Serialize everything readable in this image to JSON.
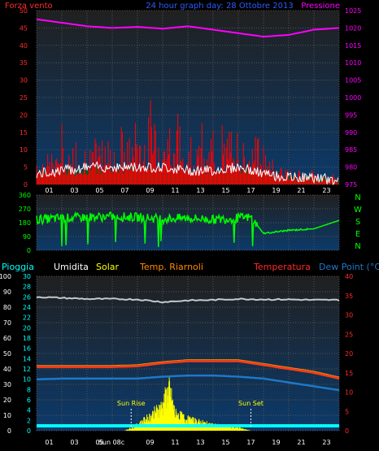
{
  "header": {
    "left_label": "Forza vento",
    "title": "24 hour graph day: 28 Ottobre 2013",
    "right_label": "Pressione"
  },
  "colors": {
    "bg_grad_top": "#202020",
    "bg_grad_bottom": "#0c3a6a",
    "grid": "#555555",
    "wind_gust": "#ff0000",
    "wind_avg": "#ffffff",
    "wind_fill": "#006400",
    "pressure": "#ff00ff",
    "direction": "#00ff00",
    "humidity": "#c8c8c8",
    "temperature": "#ff3b1a",
    "dewpoint": "#1e78c8",
    "solar": "#ffff00",
    "rain": "#00ffff",
    "green_axis": "#00ff00",
    "red_axis": "#ff2a2a",
    "cyan_axis": "#00ffff",
    "magenta_axis": "#ff00ff",
    "white_axis": "#ffffff"
  },
  "x_axis": {
    "ticks": [
      "01",
      "03",
      "05",
      "07",
      "09",
      "11",
      "13",
      "15",
      "17",
      "19",
      "21",
      "23"
    ]
  },
  "wind_panel": {
    "y_left": {
      "min": 0,
      "max": 50,
      "ticks": [
        0,
        5,
        10,
        15,
        20,
        25,
        30,
        35,
        40,
        45,
        50
      ]
    },
    "y_right": {
      "min": 975,
      "max": 1025,
      "ticks": [
        975,
        980,
        985,
        990,
        995,
        1000,
        1005,
        1010,
        1015,
        1020,
        1025
      ]
    }
  },
  "dir_panel": {
    "y_left": {
      "ticks": [
        0,
        90,
        180,
        270,
        360
      ]
    },
    "compass": [
      "N",
      "W",
      "S",
      "E",
      "N"
    ]
  },
  "legend_row": {
    "rain": "Pioggia",
    "humidity": "Umidita",
    "solar": "Solar",
    "heat": "Temp. Riarnoli",
    "temperature": "Temperatura",
    "dewpoint": "Dew Point (°C)"
  },
  "temp_panel": {
    "y_rain": {
      "ticks": [
        0,
        10,
        20,
        30,
        40,
        50,
        60,
        70,
        80,
        90,
        100
      ]
    },
    "y_hum": {
      "ticks": [
        0,
        2,
        4,
        6,
        8,
        10,
        12,
        14,
        16,
        18,
        20,
        22,
        24,
        26,
        28,
        30
      ]
    },
    "y_temp": {
      "ticks": [
        0,
        5,
        10,
        15,
        20,
        25,
        30,
        35,
        40
      ]
    },
    "sun_rise": "Sun Rise",
    "sun_set": "Sun Set",
    "sun_axis_label": "Sun 08c"
  },
  "chart_data": [
    {
      "type": "line",
      "title": "24 hour graph day: 28 Ottobre 2013",
      "xlabel": "",
      "ylabel": "Forza vento",
      "y2label": "Pressione",
      "x_ticks": [
        "01",
        "03",
        "05",
        "07",
        "09",
        "11",
        "13",
        "15",
        "17",
        "19",
        "21",
        "23"
      ],
      "ylim": [
        0,
        50
      ],
      "y2lim": [
        975,
        1025
      ],
      "series": [
        {
          "name": "Pressione",
          "axis": "right",
          "x": [
            0,
            2,
            4,
            6,
            8,
            10,
            12,
            14,
            16,
            18,
            20,
            22,
            24
          ],
          "values": [
            1022.5,
            1021.5,
            1020.5,
            1020.0,
            1020.3,
            1019.8,
            1020.5,
            1019.5,
            1018.5,
            1017.5,
            1018.0,
            1019.5,
            1020.0
          ]
        },
        {
          "x": [
            0,
            1,
            2,
            3,
            4,
            5,
            6,
            7,
            8,
            9,
            10,
            11,
            12,
            13,
            14,
            15,
            16,
            17,
            18,
            19,
            20,
            21,
            22,
            23,
            24
          ],
          "values": [
            14,
            17,
            19,
            16,
            18,
            17,
            22,
            18,
            25,
            28,
            27,
            26,
            22,
            20,
            19,
            21,
            20,
            22,
            18,
            12,
            7,
            6,
            5,
            4,
            3
          ]
        },
        {
          "x": [
            0,
            2,
            4,
            6,
            8,
            10,
            12,
            14,
            16,
            18,
            20,
            22,
            24
          ],
          "values": [
            3,
            4,
            5,
            5,
            5,
            5,
            4,
            4,
            5,
            3,
            2,
            2,
            1
          ]
        }
      ]
    },
    {
      "type": "line",
      "ylabel": "",
      "ylim": [
        0,
        360
      ],
      "series": [
        {
          "x": [
            0,
            2,
            4,
            6,
            8,
            10,
            12,
            14,
            16,
            17,
            18,
            20,
            22,
            24
          ],
          "values": [
            200,
            210,
            215,
            220,
            215,
            205,
            210,
            200,
            210,
            215,
            110,
            130,
            140,
            195
          ]
        }
      ]
    },
    {
      "type": "line",
      "xlabel": "",
      "ylabel": "Temperatura",
      "x_ticks": [
        "01",
        "03",
        "05",
        "07",
        "09",
        "11",
        "13",
        "15",
        "17",
        "19",
        "21",
        "23"
      ],
      "ylim": [
        0,
        40
      ],
      "series": [
        {
          "name": "Umidita",
          "axis": "left-hum",
          "ylim": [
            0,
            30
          ],
          "x": [
            0,
            2,
            4,
            6,
            8,
            10,
            12,
            14,
            16,
            18,
            20,
            22,
            24
          ],
          "values": [
            26.0,
            25.8,
            25.6,
            25.6,
            25.5,
            25.0,
            25.3,
            25.4,
            25.6,
            25.5,
            25.5,
            25.4,
            25.4
          ]
        },
        {
          "name": "Temperatura",
          "x": [
            0,
            2,
            4,
            6,
            8,
            10,
            12,
            14,
            16,
            18,
            20,
            22,
            24
          ],
          "values": [
            16.5,
            16.5,
            16.5,
            16.5,
            16.7,
            17.5,
            18.0,
            18.0,
            18.0,
            17.0,
            16.0,
            15.0,
            13.5
          ]
        },
        {
          "name": "Dew Point (°C)",
          "x": [
            0,
            2,
            4,
            6,
            8,
            10,
            12,
            14,
            16,
            18,
            20,
            22,
            24
          ],
          "values": [
            13.3,
            13.5,
            13.5,
            13.5,
            13.5,
            14.0,
            14.3,
            14.3,
            14.0,
            13.5,
            12.5,
            11.5,
            10.5
          ]
        },
        {
          "name": "Solar",
          "x": [
            7,
            8,
            9,
            10,
            10.5,
            11,
            12,
            13,
            14,
            15,
            16,
            17
          ],
          "values": [
            0,
            2,
            5,
            9,
            15,
            6,
            4,
            3,
            2,
            1.5,
            1,
            0
          ]
        },
        {
          "name": "Pioggia",
          "axis": "left-rain",
          "x": [
            0,
            24
          ],
          "values": [
            0,
            0
          ]
        }
      ],
      "sun_rise_hour": 7.5,
      "sun_set_hour": 17.0
    }
  ]
}
